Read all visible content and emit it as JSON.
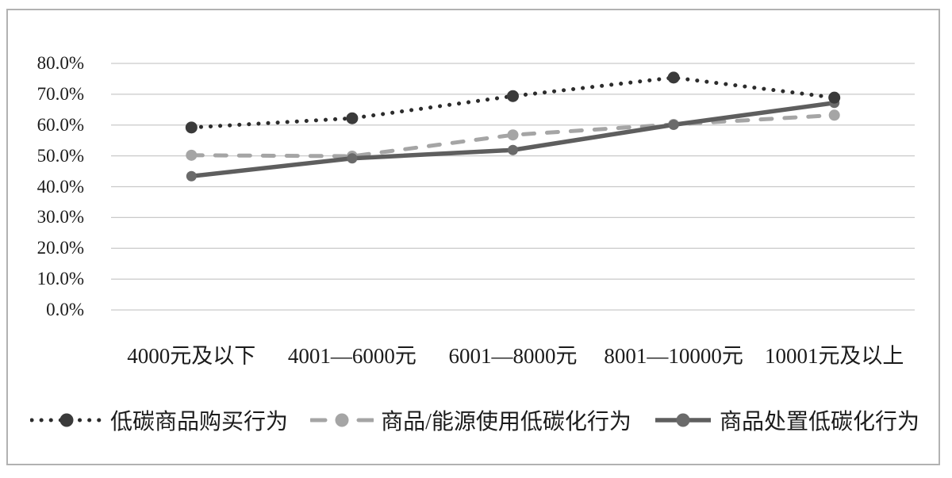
{
  "chart_data": {
    "type": "line",
    "title": "",
    "xlabel": "",
    "ylabel": "",
    "grid": true,
    "legend_position": "bottom",
    "ylim": [
      0,
      80
    ],
    "y_step": 10,
    "y_tick_labels": [
      "80.0%",
      "70.0%",
      "60.0%",
      "50.0%",
      "40.0%",
      "30.0%",
      "20.0%",
      "10.0%",
      "0.0%"
    ],
    "categories": [
      "4000元及以下",
      "4001—6000元",
      "6001—8000元",
      "8001—10000元",
      "10001元及以上"
    ],
    "series": [
      {
        "name": "低碳商品购买行为",
        "style": "dotted",
        "color": "#2c2c2c",
        "marker_color": "#3a3a3a",
        "values": [
          59.2,
          62.2,
          69.4,
          75.4,
          68.9
        ]
      },
      {
        "name": "商品/能源使用低碳化行为",
        "style": "dashed",
        "color": "#a5a5a5",
        "marker_color": "#a5a5a5",
        "values": [
          50.2,
          49.9,
          56.8,
          60.2,
          63.2
        ]
      },
      {
        "name": "商品处置低碳化行为",
        "style": "solid",
        "color": "#5e5e5e",
        "marker_color": "#6a6a6a",
        "values": [
          43.4,
          49.2,
          51.9,
          60.1,
          67.2
        ]
      }
    ]
  },
  "colors": {
    "grid": "#c9c9c9",
    "frame_border": "#b2b2b2",
    "text": "#1b1b1b",
    "background": "#ffffff"
  }
}
